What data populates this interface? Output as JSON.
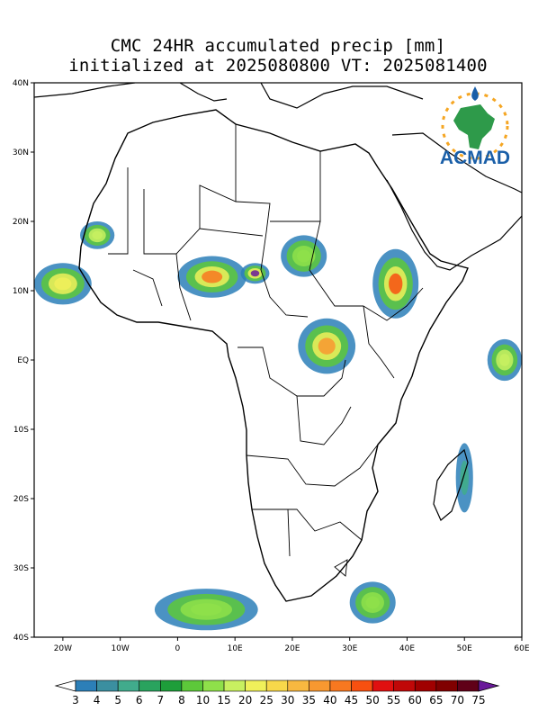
{
  "title": {
    "line1": "CMC 24HR accumulated precip [mm]",
    "line2": "initialized at 2025080800 VT: 2025081400"
  },
  "logo": {
    "text": "ACMAD",
    "icon": "africa-continent-sun-icon"
  },
  "map": {
    "lon_range": [
      -25,
      60
    ],
    "lat_range": [
      -40,
      40
    ],
    "lat_labels": [
      {
        "lat": 40,
        "label": "40N"
      },
      {
        "lat": 30,
        "label": "30N"
      },
      {
        "lat": 20,
        "label": "20N"
      },
      {
        "lat": 10,
        "label": "10N"
      },
      {
        "lat": 0,
        "label": "EQ"
      },
      {
        "lat": -10,
        "label": "10S"
      },
      {
        "lat": -20,
        "label": "20S"
      },
      {
        "lat": -30,
        "label": "30S"
      },
      {
        "lat": -40,
        "label": "40S"
      }
    ],
    "lon_labels": [
      {
        "lon": -20,
        "label": "20W"
      },
      {
        "lon": -10,
        "label": "10W"
      },
      {
        "lon": 0,
        "label": "0"
      },
      {
        "lon": 10,
        "label": "10E"
      },
      {
        "lon": 20,
        "label": "20E"
      },
      {
        "lon": 30,
        "label": "30E"
      },
      {
        "lon": 40,
        "label": "40E"
      },
      {
        "lon": 50,
        "label": "50E"
      },
      {
        "lon": 60,
        "label": "60E"
      }
    ]
  },
  "precip_areas": [
    {
      "name": "west-atlantic-sahel",
      "lon": -20,
      "lat": 11,
      "rx": 5,
      "ry": 3,
      "level": 20
    },
    {
      "name": "mauritania-band",
      "lon": -14,
      "lat": 18,
      "rx": 3,
      "ry": 2,
      "level": 15
    },
    {
      "name": "nigeria-niger",
      "lon": 6,
      "lat": 12,
      "rx": 6,
      "ry": 3,
      "level": 40
    },
    {
      "name": "lake-chad-core",
      "lon": 13.5,
      "lat": 12.5,
      "rx": 2.5,
      "ry": 1.5,
      "level": 75
    },
    {
      "name": "sudan-central",
      "lon": 22,
      "lat": 15,
      "rx": 4,
      "ry": 3,
      "level": 10
    },
    {
      "name": "ethiopia-highlands",
      "lon": 38,
      "lat": 11,
      "rx": 4,
      "ry": 5,
      "level": 45
    },
    {
      "name": "congo-basin",
      "lon": 26,
      "lat": 2,
      "rx": 5,
      "ry": 4,
      "level": 35
    },
    {
      "name": "indian-ocean-east",
      "lon": 57,
      "lat": 0,
      "rx": 3,
      "ry": 3,
      "level": 15
    },
    {
      "name": "south-atlantic-front",
      "lon": 5,
      "lat": -36,
      "rx": 9,
      "ry": 3,
      "level": 10
    },
    {
      "name": "south-africa-east",
      "lon": 34,
      "lat": -35,
      "rx": 4,
      "ry": 3,
      "level": 10
    },
    {
      "name": "madagascar-east",
      "lon": 50,
      "lat": -17,
      "rx": 1.5,
      "ry": 5,
      "level": 5
    }
  ],
  "colorbar": {
    "labels": [
      "3",
      "4",
      "5",
      "6",
      "7",
      "8",
      "10",
      "15",
      "20",
      "25",
      "30",
      "35",
      "40",
      "45",
      "50",
      "55",
      "60",
      "65",
      "70",
      "75"
    ],
    "colors": [
      "#2c7fb8",
      "#3b8fa0",
      "#41ab8c",
      "#29a35e",
      "#1e9e3a",
      "#5dc83a",
      "#8fe04a",
      "#c8f060",
      "#f0f05a",
      "#f8d84a",
      "#f8b840",
      "#f89830",
      "#f87820",
      "#f85010",
      "#e01010",
      "#c00808",
      "#a00000",
      "#800000",
      "#600018"
    ],
    "low_color": "#ffffff",
    "high_color": "#6a1a9a"
  }
}
